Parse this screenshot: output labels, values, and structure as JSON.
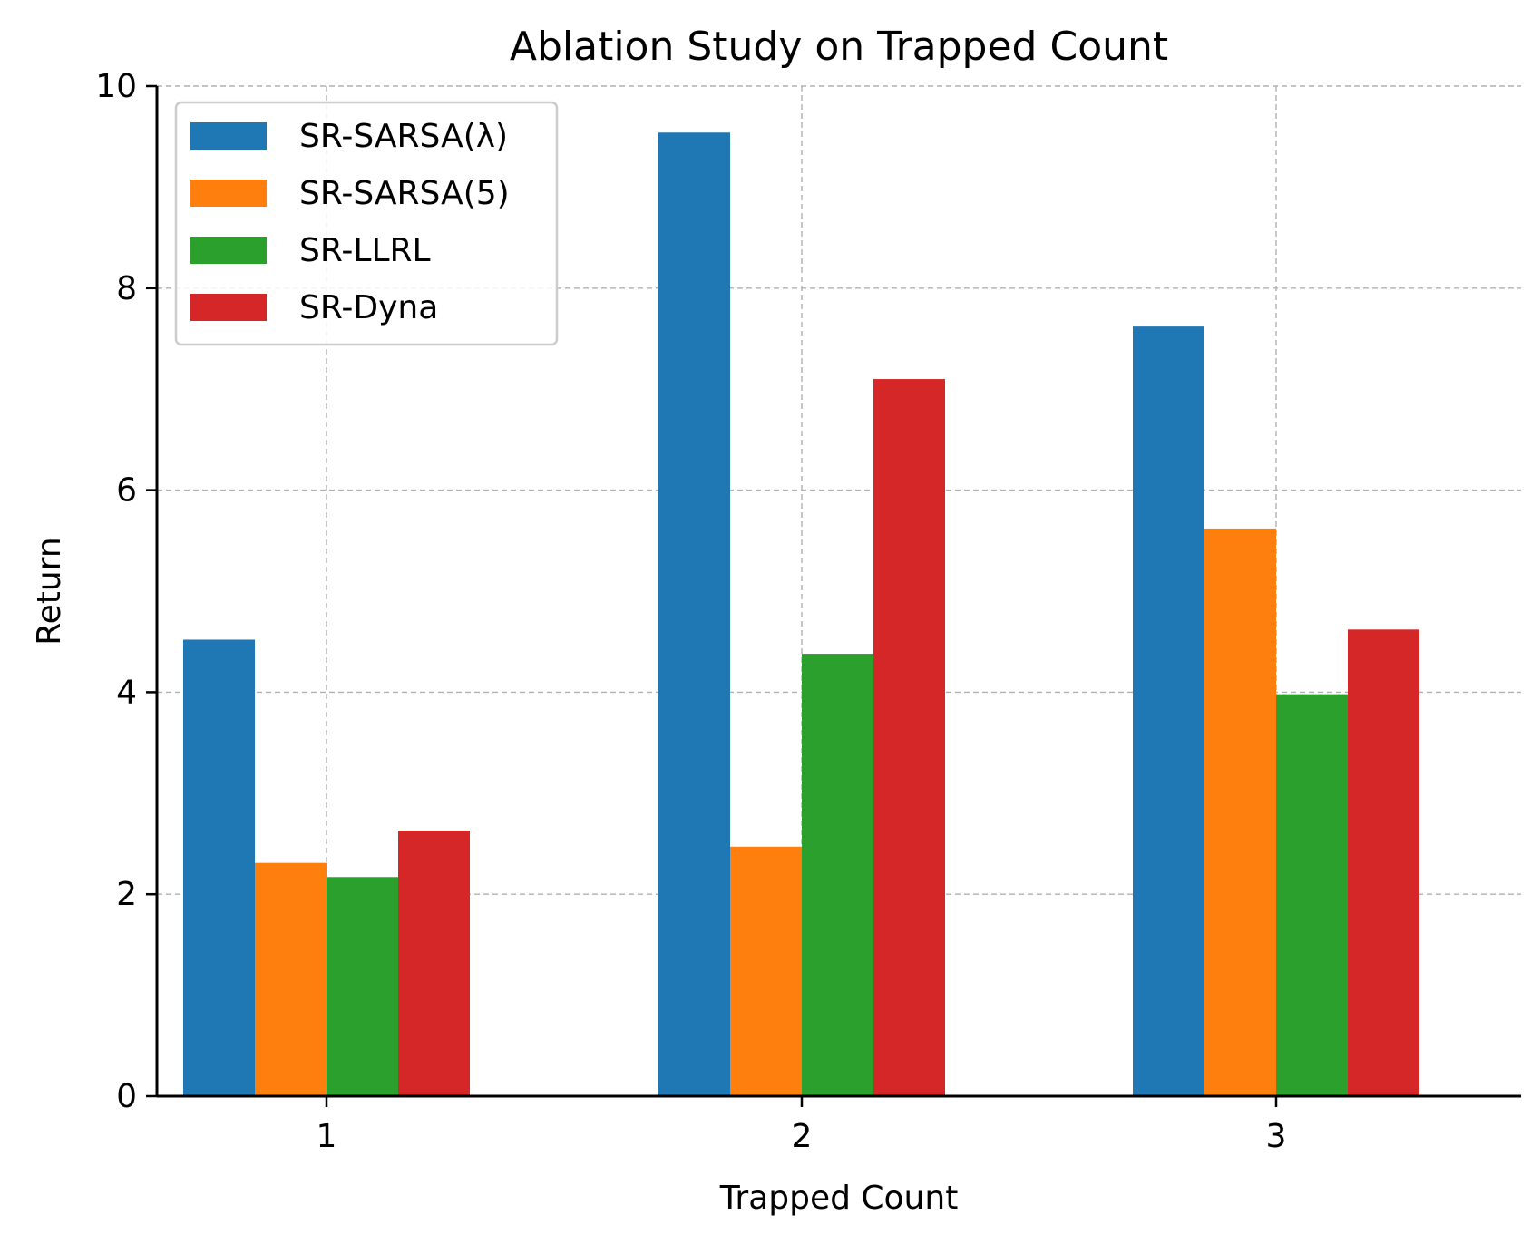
{
  "chart_data": {
    "type": "bar",
    "title": "Ablation Study on Trapped Count",
    "xlabel": "Trapped Count",
    "ylabel": "Return",
    "categories": [
      "1",
      "2",
      "3"
    ],
    "ylim": [
      0,
      10
    ],
    "yticks": [
      "0",
      "2",
      "4",
      "6",
      "8",
      "10"
    ],
    "grid": true,
    "legend_position": "top-left",
    "series": [
      {
        "name": "SR-SARSA(λ)",
        "color": "#1f77b4",
        "values": [
          4.52,
          9.54,
          7.62
        ]
      },
      {
        "name": "SR-SARSA(5)",
        "color": "#ff7f0e",
        "values": [
          2.31,
          2.47,
          5.62
        ]
      },
      {
        "name": "SR-LLRL",
        "color": "#2ca02c",
        "values": [
          2.17,
          4.38,
          3.98
        ]
      },
      {
        "name": "SR-Dyna",
        "color": "#d62728",
        "values": [
          2.63,
          7.1,
          4.62
        ]
      }
    ]
  }
}
